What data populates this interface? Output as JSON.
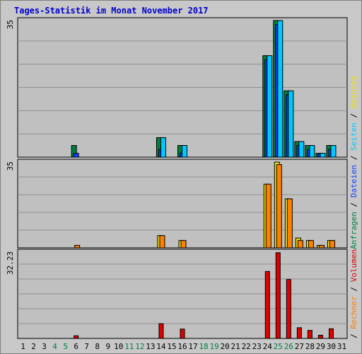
{
  "title": "Tages-Statistik im Monat November 2017",
  "colors": {
    "page_bg": "#c8c8c8",
    "plot_bg": "#c0c0c0",
    "grid": "#909090",
    "title": "#0000cc",
    "anfragen": "#008040",
    "dateien": "#1040ff",
    "seiten": "#00c8ff",
    "besuche": "#f0e000",
    "rechner": "#ff8000",
    "volumen": "#e00000",
    "weekend_day": "#008040",
    "weekday": "#000000"
  },
  "legend_right": {
    "upper": [
      {
        "key": "anfragen",
        "label": "Anfragen"
      },
      {
        "key": "sep1",
        "label": " / "
      },
      {
        "key": "dateien",
        "label": "Dateien"
      },
      {
        "key": "sep2",
        "label": " / "
      },
      {
        "key": "seiten",
        "label": "Seiten"
      },
      {
        "key": "sep3",
        "label": " / "
      },
      {
        "key": "besuche",
        "label": "Besuche"
      }
    ],
    "lower": [
      {
        "key": "sep4",
        "label": " / "
      },
      {
        "key": "rechner",
        "label": "Rechner"
      },
      {
        "key": "sep5",
        "label": " / "
      },
      {
        "key": "volumen",
        "label": "Volumen"
      }
    ]
  },
  "chart_data": [
    {
      "panel": "top",
      "type": "bar",
      "y_label_max": "35",
      "ylim": [
        0,
        35
      ],
      "grid": true,
      "series": [
        {
          "name": "Anfragen",
          "key": "anfragen",
          "values": [
            0,
            0,
            0,
            0,
            0,
            3,
            0,
            0,
            0,
            0,
            0,
            0,
            0,
            5,
            0,
            3,
            0,
            0,
            0,
            0,
            0,
            0,
            0,
            26,
            35,
            17,
            4,
            3,
            1,
            3
          ]
        },
        {
          "name": "Dateien",
          "key": "dateien",
          "values": [
            0,
            0,
            0,
            0,
            0,
            1,
            0,
            0,
            0,
            0,
            0,
            0,
            0,
            2,
            0,
            1,
            0,
            0,
            0,
            0,
            0,
            0,
            0,
            25,
            34,
            16,
            3,
            2,
            1,
            2
          ]
        },
        {
          "name": "Seiten",
          "key": "seiten",
          "values": [
            0,
            0,
            0,
            0,
            0,
            0,
            0,
            0,
            0,
            0,
            0,
            0,
            0,
            5,
            0,
            3,
            0,
            0,
            0,
            0,
            0,
            0,
            0,
            26,
            35,
            17,
            4,
            3,
            1,
            3
          ]
        }
      ]
    },
    {
      "panel": "middle",
      "type": "bar",
      "y_label_max": "35",
      "ylim": [
        0,
        35
      ],
      "grid": true,
      "series": [
        {
          "name": "Besuche",
          "key": "besuche",
          "values": [
            0,
            0,
            0,
            0,
            0,
            0,
            0,
            0,
            0,
            0,
            0,
            0,
            0,
            5,
            0,
            3,
            0,
            0,
            0,
            0,
            0,
            0,
            0,
            26,
            35,
            20,
            4,
            3,
            1,
            3
          ]
        },
        {
          "name": "Rechner",
          "key": "rechner",
          "values": [
            0,
            0,
            0,
            0,
            0,
            1,
            0,
            0,
            0,
            0,
            0,
            0,
            0,
            5,
            0,
            3,
            0,
            0,
            0,
            0,
            0,
            0,
            0,
            26,
            34,
            20,
            3,
            3,
            1,
            3
          ]
        }
      ]
    },
    {
      "panel": "bottom",
      "type": "bar",
      "y_label_max": "32.23",
      "ylim": [
        0,
        32.23
      ],
      "grid": true,
      "series": [
        {
          "name": "Volumen",
          "key": "volumen",
          "values": [
            0,
            0,
            0,
            0,
            0,
            1,
            0,
            0,
            0,
            0,
            0,
            0,
            0,
            5.5,
            0,
            3.5,
            0,
            0,
            0,
            0,
            0,
            0,
            0,
            25,
            32,
            22,
            4,
            3,
            1.2,
            3.6
          ]
        }
      ]
    }
  ],
  "x_axis": {
    "labels": [
      "1",
      "2",
      "3",
      "4",
      "5",
      "6",
      "7",
      "8",
      "9",
      "10",
      "11",
      "12",
      "13",
      "14",
      "15",
      "16",
      "17",
      "18",
      "19",
      "20",
      "21",
      "22",
      "23",
      "24",
      "25",
      "26",
      "27",
      "28",
      "29",
      "30",
      "31"
    ],
    "weekend": [
      "4",
      "5",
      "11",
      "12",
      "18",
      "19",
      "25",
      "26"
    ]
  }
}
